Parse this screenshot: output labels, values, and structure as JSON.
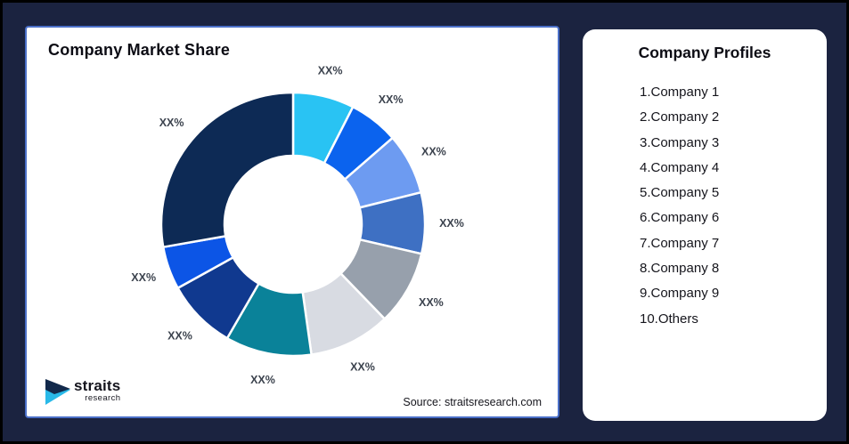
{
  "page": {
    "background": "#1B2340",
    "border_color": "#000000",
    "panel_bg": "#FFFFFF",
    "left_panel_border": "#4A6FC8"
  },
  "left_panel": {
    "title": "Company Market Share",
    "source": "Source: straitsresearch.com",
    "logo": {
      "brand": "straits",
      "sub": "research",
      "mark_navy": "#12294B",
      "mark_cyan": "#29B9E8"
    }
  },
  "chart_data": {
    "type": "donut",
    "title": "Company Market Share",
    "inner_radius_ratio": 0.52,
    "start_angle_deg": 0,
    "label_color": "#3C434E",
    "segments": [
      {
        "label": "XX%",
        "sweep_deg": 27,
        "color": "#29C3F3"
      },
      {
        "label": "XX%",
        "sweep_deg": 22,
        "color": "#0B63EE"
      },
      {
        "label": "XX%",
        "sweep_deg": 27,
        "color": "#6D9BF1"
      },
      {
        "label": "XX%",
        "sweep_deg": 27,
        "color": "#3E70C3"
      },
      {
        "label": "XX%",
        "sweep_deg": 33,
        "color": "#97A0AC"
      },
      {
        "label": "XX%",
        "sweep_deg": 36,
        "color": "#D8DBE2"
      },
      {
        "label": "XX%",
        "sweep_deg": 38,
        "color": "#0A8299"
      },
      {
        "label": "XX%",
        "sweep_deg": 31,
        "color": "#10398F"
      },
      {
        "label": "XX%",
        "sweep_deg": 19,
        "color": "#0C55E6"
      },
      {
        "label": "XX%",
        "sweep_deg": 100,
        "color": "#0D2A55"
      }
    ]
  },
  "right_panel": {
    "title": "Company Profiles",
    "items": [
      "1.Company 1",
      "2.Company 2",
      "3.Company 3",
      "4.Company 4",
      "5.Company 5",
      "6.Company 6",
      "7.Company 7",
      "8.Company 8",
      "9.Company 9",
      "10.Others"
    ]
  }
}
